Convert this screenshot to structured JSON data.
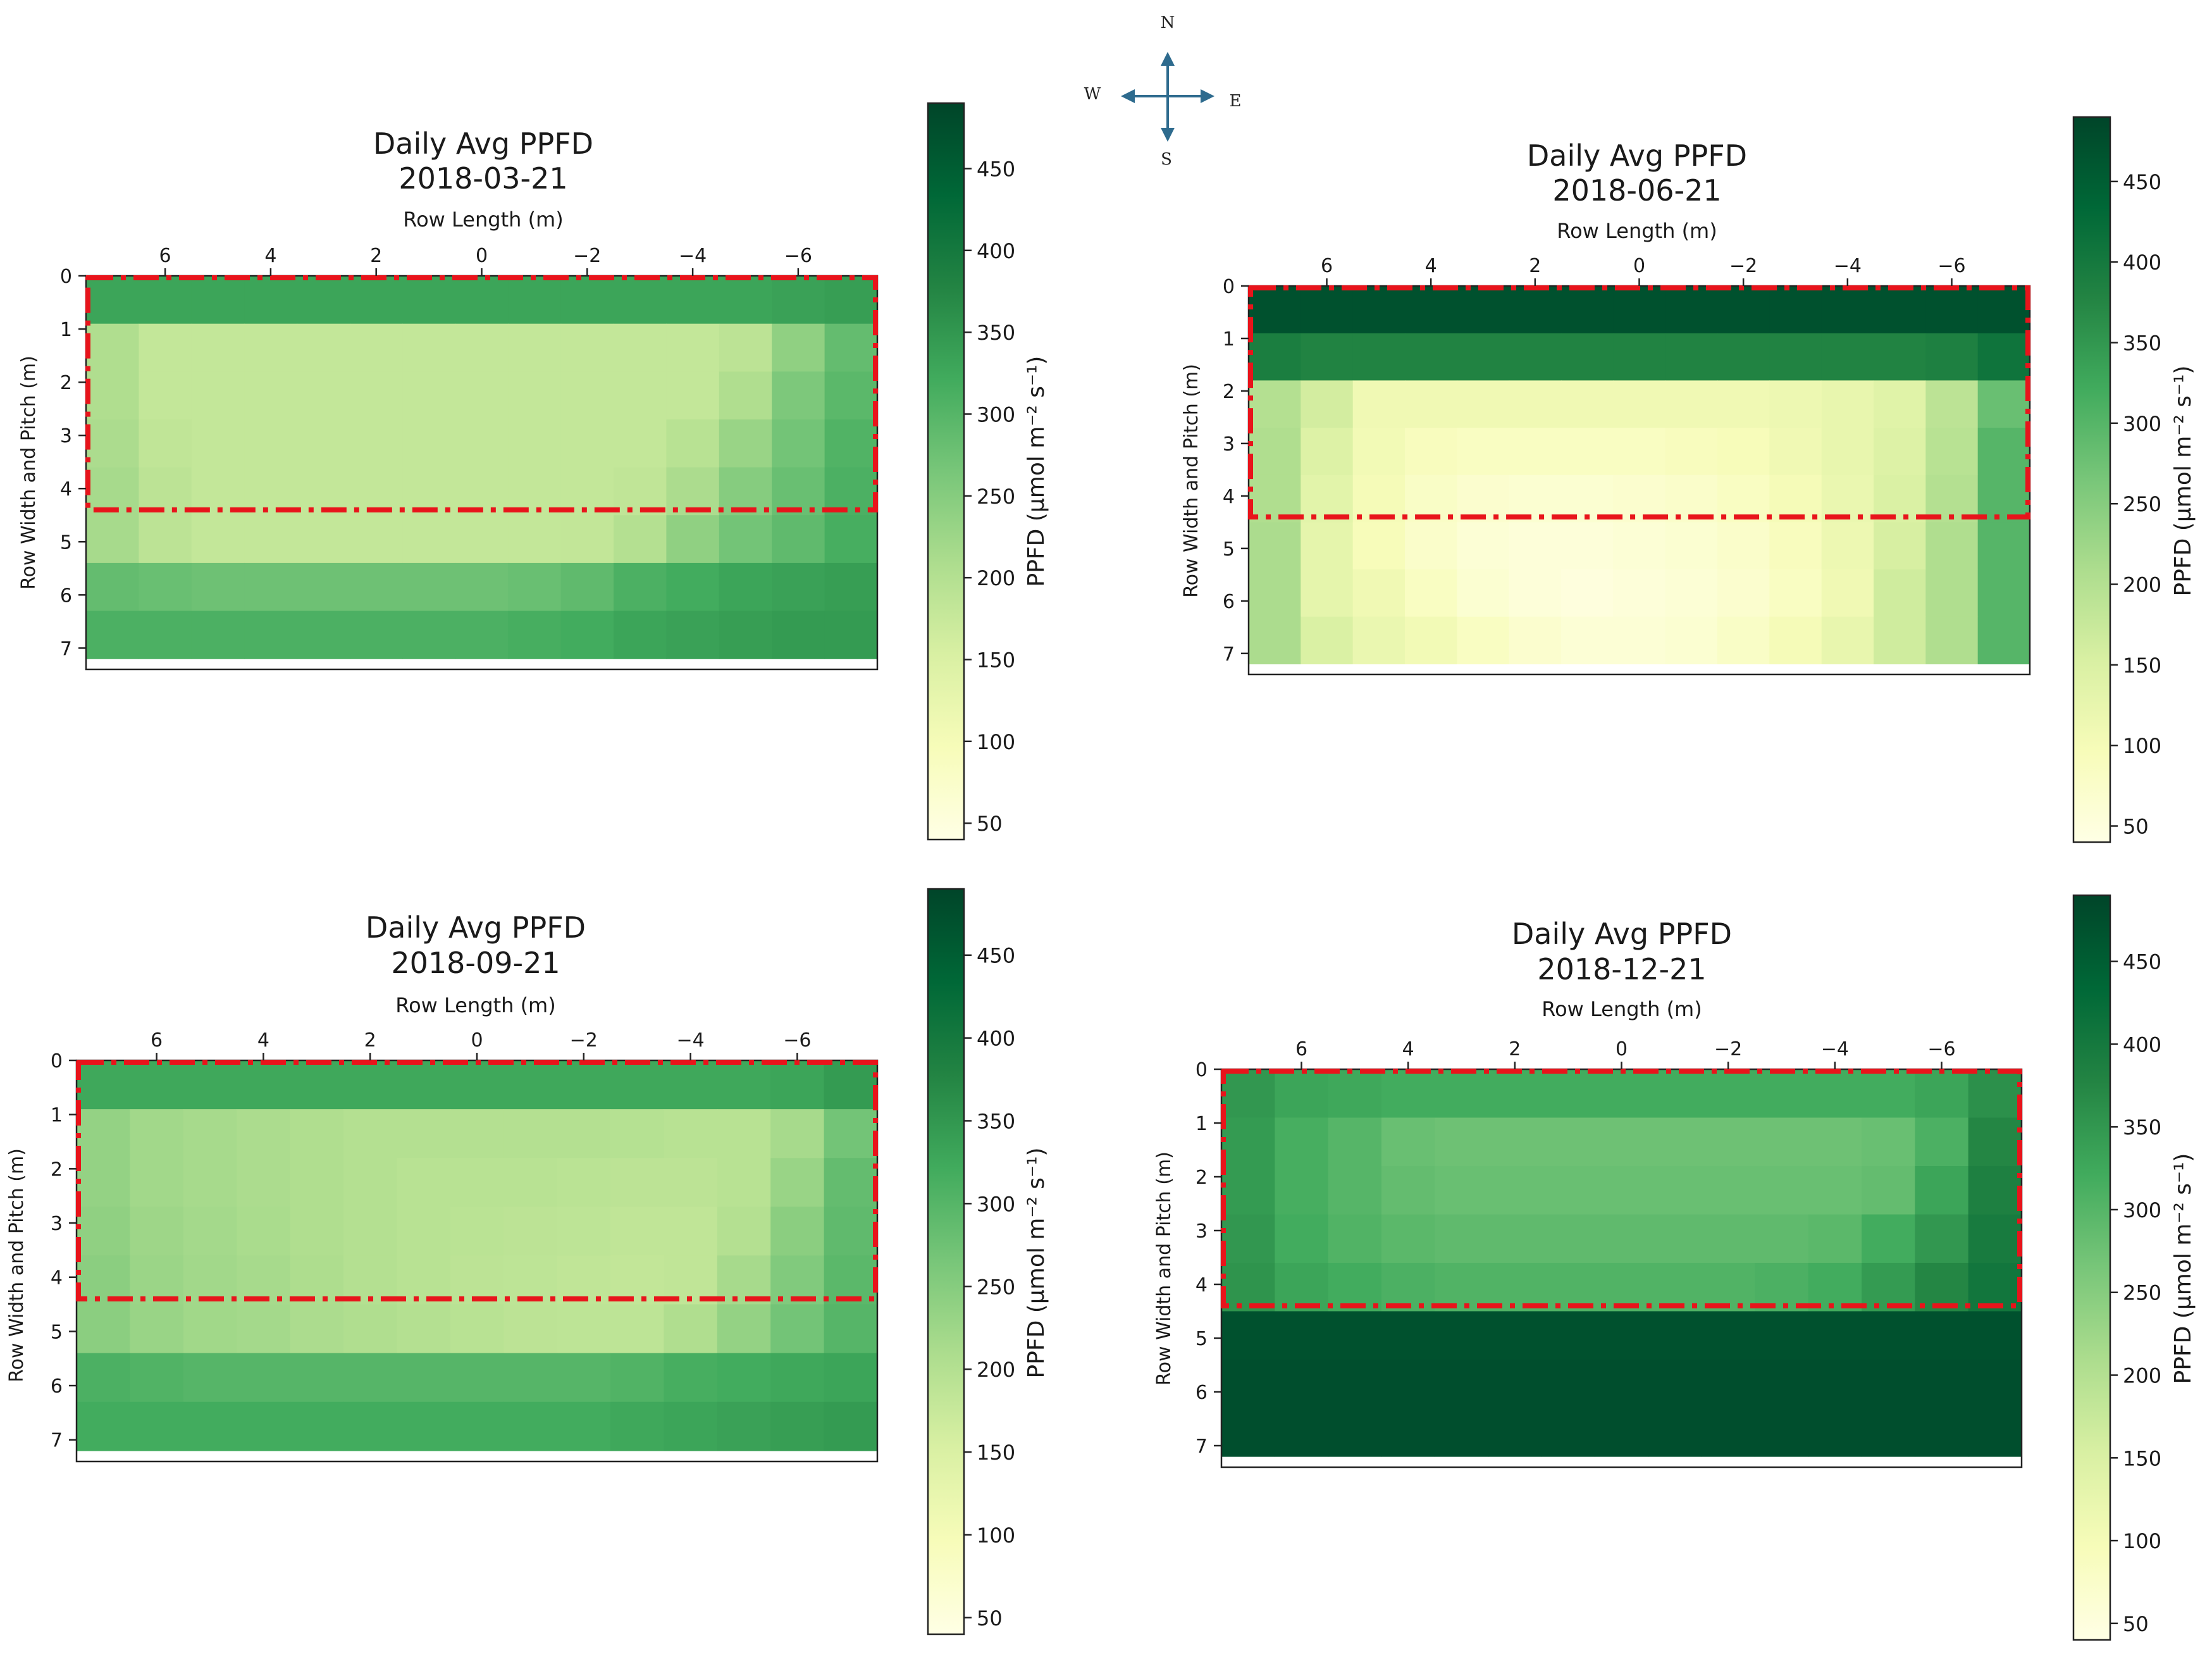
{
  "figure": {
    "compass": {
      "north": "N",
      "south": "S",
      "east": "E",
      "west": "W",
      "arrow_color": "#2e6b8e"
    },
    "highlight_color": "#e8141b",
    "colormap_name": "YlGn"
  },
  "chart_data": [
    {
      "type": "heatmap",
      "title": "Daily Avg PPFD",
      "subtitle": "2018-03-21",
      "xlabel": "Row Length (m)",
      "ylabel": "Row Width and Pitch (m)",
      "colorbar_label": "PPFD (μmol m⁻² s⁻¹)",
      "colorbar_range": [
        40,
        490
      ],
      "colorbar_ticks": [
        50,
        100,
        150,
        200,
        250,
        300,
        350,
        400,
        450
      ],
      "x_range": [
        7.5,
        -7.5
      ],
      "x_ticks": [
        "6",
        "4",
        "2",
        "0",
        "−2",
        "−4",
        "−6"
      ],
      "x_tick_values": [
        6,
        4,
        2,
        0,
        -2,
        -4,
        -6
      ],
      "y_range": [
        0,
        7.4
      ],
      "y_ticks": [
        "0",
        "1",
        "2",
        "3",
        "4",
        "5",
        "6",
        "7"
      ],
      "y_tick_values": [
        0,
        1,
        2,
        3,
        4,
        5,
        6,
        7
      ],
      "data_y_max": 7.2,
      "highlight_box": {
        "x_range": [
          7.5,
          -7.5
        ],
        "y_range": [
          0,
          4.4
        ]
      },
      "values": [
        [
          330,
          330,
          330,
          330,
          330,
          330,
          330,
          330,
          330,
          330,
          330,
          330,
          330,
          335,
          340
        ],
        [
          205,
          180,
          180,
          180,
          180,
          180,
          180,
          180,
          180,
          180,
          180,
          180,
          190,
          240,
          285
        ],
        [
          205,
          180,
          180,
          180,
          180,
          180,
          180,
          180,
          180,
          180,
          180,
          180,
          205,
          260,
          295
        ],
        [
          210,
          185,
          180,
          180,
          180,
          180,
          180,
          180,
          180,
          180,
          180,
          195,
          230,
          270,
          305
        ],
        [
          215,
          190,
          180,
          180,
          180,
          180,
          180,
          180,
          180,
          180,
          185,
          210,
          250,
          280,
          310
        ],
        [
          215,
          190,
          180,
          180,
          180,
          180,
          180,
          180,
          180,
          182,
          200,
          240,
          270,
          290,
          315
        ],
        [
          285,
          280,
          275,
          275,
          275,
          275,
          275,
          275,
          280,
          290,
          310,
          320,
          330,
          335,
          340
        ],
        [
          310,
          310,
          310,
          310,
          310,
          310,
          310,
          310,
          315,
          320,
          330,
          335,
          340,
          345,
          345
        ]
      ]
    },
    {
      "type": "heatmap",
      "title": "Daily Avg PPFD",
      "subtitle": "2018-06-21",
      "xlabel": "Row Length (m)",
      "ylabel": "Row Width and Pitch (m)",
      "colorbar_label": "PPFD (μmol m⁻² s⁻¹)",
      "colorbar_range": [
        40,
        490
      ],
      "colorbar_ticks": [
        50,
        100,
        150,
        200,
        250,
        300,
        350,
        400,
        450
      ],
      "x_range": [
        7.5,
        -7.5
      ],
      "x_ticks": [
        "6",
        "4",
        "2",
        "0",
        "−2",
        "−4",
        "−6"
      ],
      "x_tick_values": [
        6,
        4,
        2,
        0,
        -2,
        -4,
        -6
      ],
      "y_range": [
        0,
        7.4
      ],
      "y_ticks": [
        "0",
        "1",
        "2",
        "3",
        "4",
        "5",
        "6",
        "7"
      ],
      "y_tick_values": [
        0,
        1,
        2,
        3,
        4,
        5,
        6,
        7
      ],
      "data_y_max": 7.2,
      "highlight_box": {
        "x_range": [
          7.5,
          -7.5
        ],
        "y_range": [
          0,
          4.4
        ]
      },
      "values": [
        [
          470,
          470,
          470,
          470,
          470,
          470,
          470,
          470,
          470,
          470,
          470,
          470,
          470,
          470,
          470
        ],
        [
          390,
          380,
          380,
          380,
          380,
          380,
          380,
          380,
          380,
          380,
          380,
          380,
          380,
          385,
          410
        ],
        [
          200,
          160,
          110,
          110,
          110,
          110,
          110,
          110,
          110,
          110,
          115,
          125,
          140,
          190,
          280
        ],
        [
          205,
          145,
          105,
          90,
          85,
          85,
          85,
          85,
          90,
          95,
          110,
          125,
          145,
          195,
          300
        ],
        [
          205,
          135,
          100,
          80,
          70,
          65,
          65,
          70,
          75,
          85,
          100,
          120,
          150,
          200,
          300
        ],
        [
          210,
          130,
          95,
          75,
          60,
          55,
          55,
          60,
          65,
          75,
          90,
          115,
          155,
          205,
          300
        ],
        [
          210,
          130,
          110,
          85,
          65,
          55,
          50,
          55,
          60,
          70,
          85,
          110,
          165,
          205,
          300
        ],
        [
          210,
          150,
          120,
          105,
          85,
          70,
          60,
          60,
          65,
          80,
          100,
          125,
          165,
          205,
          300
        ]
      ]
    },
    {
      "type": "heatmap",
      "title": "Daily Avg PPFD",
      "subtitle": "2018-09-21",
      "xlabel": "Row Length (m)",
      "ylabel": "Row Width and Pitch (m)",
      "colorbar_label": "PPFD (μmol m⁻² s⁻¹)",
      "colorbar_range": [
        40,
        490
      ],
      "colorbar_ticks": [
        50,
        100,
        150,
        200,
        250,
        300,
        350,
        400,
        450
      ],
      "x_range": [
        7.5,
        -7.5
      ],
      "x_ticks": [
        "6",
        "4",
        "2",
        "0",
        "−2",
        "−4",
        "−6"
      ],
      "x_tick_values": [
        6,
        4,
        2,
        0,
        -2,
        -4,
        -6
      ],
      "y_range": [
        0,
        7.4
      ],
      "y_ticks": [
        "0",
        "1",
        "2",
        "3",
        "4",
        "5",
        "6",
        "7"
      ],
      "y_tick_values": [
        0,
        1,
        2,
        3,
        4,
        5,
        6,
        7
      ],
      "data_y_max": 7.2,
      "highlight_box": {
        "x_range": [
          7.5,
          -7.5
        ],
        "y_range": [
          0,
          4.4
        ]
      },
      "values": [
        [
          325,
          325,
          325,
          325,
          325,
          325,
          325,
          325,
          325,
          325,
          325,
          325,
          325,
          330,
          345
        ],
        [
          235,
          220,
          215,
          210,
          205,
          200,
          200,
          200,
          200,
          200,
          198,
          195,
          195,
          215,
          270
        ],
        [
          235,
          220,
          215,
          210,
          205,
          200,
          195,
          195,
          195,
          192,
          190,
          190,
          195,
          230,
          285
        ],
        [
          240,
          225,
          218,
          212,
          205,
          200,
          195,
          192,
          190,
          188,
          185,
          185,
          200,
          245,
          290
        ],
        [
          245,
          228,
          220,
          215,
          208,
          200,
          195,
          190,
          188,
          185,
          182,
          185,
          215,
          255,
          295
        ],
        [
          245,
          230,
          222,
          218,
          210,
          205,
          200,
          195,
          190,
          188,
          188,
          205,
          235,
          270,
          300
        ],
        [
          310,
          305,
          300,
          300,
          300,
          300,
          300,
          300,
          300,
          300,
          305,
          315,
          320,
          325,
          330
        ],
        [
          320,
          320,
          320,
          320,
          320,
          320,
          320,
          320,
          320,
          320,
          325,
          330,
          335,
          340,
          345
        ]
      ]
    },
    {
      "type": "heatmap",
      "title": "Daily Avg PPFD",
      "subtitle": "2018-12-21",
      "xlabel": "Row Length (m)",
      "ylabel": "Row Width and Pitch (m)",
      "colorbar_label": "PPFD (μmol m⁻² s⁻¹)",
      "colorbar_range": [
        40,
        490
      ],
      "colorbar_ticks": [
        50,
        100,
        150,
        200,
        250,
        300,
        350,
        400,
        450
      ],
      "x_range": [
        7.5,
        -7.5
      ],
      "x_ticks": [
        "6",
        "4",
        "2",
        "0",
        "−2",
        "−4",
        "−6"
      ],
      "x_tick_values": [
        6,
        4,
        2,
        0,
        -2,
        -4,
        -6
      ],
      "y_range": [
        0,
        7.4
      ],
      "y_ticks": [
        "0",
        "1",
        "2",
        "3",
        "4",
        "5",
        "6",
        "7"
      ],
      "y_tick_values": [
        0,
        1,
        2,
        3,
        4,
        5,
        6,
        7
      ],
      "data_y_max": 7.2,
      "highlight_box": {
        "x_range": [
          7.5,
          -7.5
        ],
        "y_range": [
          0,
          4.4
        ]
      },
      "values": [
        [
          350,
          330,
          325,
          320,
          320,
          320,
          320,
          320,
          320,
          320,
          320,
          320,
          320,
          330,
          360
        ],
        [
          345,
          315,
          300,
          280,
          275,
          275,
          275,
          275,
          275,
          275,
          275,
          275,
          280,
          310,
          375
        ],
        [
          345,
          315,
          300,
          285,
          280,
          280,
          280,
          280,
          280,
          280,
          280,
          280,
          285,
          330,
          385
        ],
        [
          350,
          320,
          305,
          295,
          290,
          290,
          290,
          290,
          290,
          290,
          290,
          295,
          320,
          350,
          395
        ],
        [
          355,
          330,
          320,
          310,
          305,
          305,
          305,
          305,
          305,
          305,
          310,
          320,
          345,
          375,
          405
        ],
        [
          470,
          470,
          470,
          470,
          470,
          470,
          470,
          470,
          470,
          470,
          470,
          470,
          470,
          470,
          470
        ],
        [
          475,
          475,
          475,
          475,
          475,
          475,
          475,
          475,
          475,
          475,
          475,
          475,
          475,
          475,
          475
        ],
        [
          475,
          475,
          475,
          475,
          475,
          475,
          475,
          475,
          475,
          475,
          475,
          475,
          475,
          475,
          475
        ]
      ]
    }
  ]
}
